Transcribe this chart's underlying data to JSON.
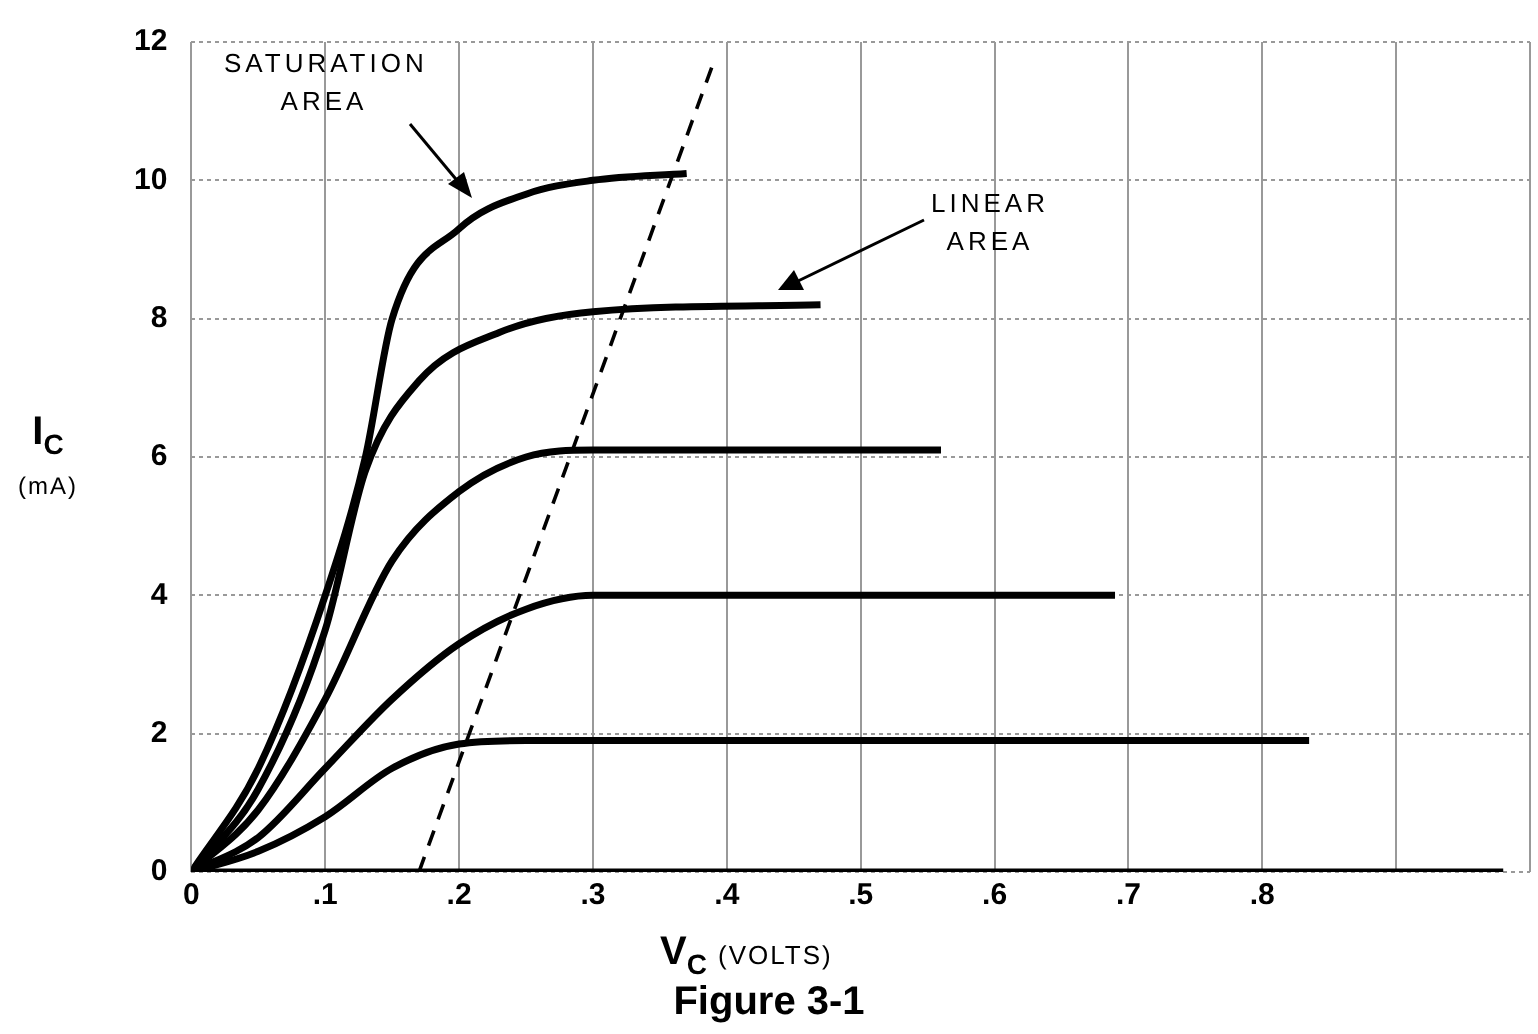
{
  "chart_data": {
    "type": "line",
    "xlabel": "V$_{C}$ (VOLTS)",
    "ylabel": "I$_{C}$ (mA)",
    "xlim": [
      0,
      1.0
    ],
    "ylim": [
      0,
      12
    ],
    "xticks": [
      0,
      {
        "value": 0.1,
        "label": ".1"
      },
      {
        "value": 0.2,
        "label": ".2"
      },
      {
        "value": 0.3,
        "label": ".3"
      },
      {
        "value": 0.4,
        "label": ".4"
      },
      {
        "value": 0.5,
        "label": ".5"
      },
      {
        "value": 0.6,
        "label": ".6"
      },
      {
        "value": 0.7,
        "label": ".7"
      },
      {
        "value": 0.8,
        "label": ".8"
      },
      {
        "value": 0.9,
        "label": null
      },
      {
        "value": 1.0,
        "label": null
      }
    ],
    "yticks": [
      0,
      2,
      4,
      6,
      8,
      10,
      12
    ],
    "grid": true,
    "legend": false,
    "marker": "none",
    "line_style": "solid",
    "series": [
      {
        "color": "#000000",
        "x": [
          0,
          0.05,
          0.1,
          0.13,
          0.15,
          0.2,
          0.25,
          0.3,
          0.37
        ],
        "values": [
          0,
          1.5,
          4.0,
          6.0,
          8.0,
          9.3,
          9.8,
          10.0,
          10.1
        ]
      },
      {
        "color": "#000000",
        "x": [
          0,
          0.05,
          0.1,
          0.13,
          0.17,
          0.23,
          0.3,
          0.47
        ],
        "values": [
          0,
          1.2,
          3.5,
          5.8,
          7.1,
          7.8,
          8.1,
          8.2
        ]
      },
      {
        "color": "#000000",
        "x": [
          0,
          0.05,
          0.1,
          0.15,
          0.2,
          0.25,
          0.3,
          0.56
        ],
        "values": [
          0,
          0.9,
          2.5,
          4.5,
          5.5,
          6.0,
          6.1,
          6.1
        ]
      },
      {
        "color": "#000000",
        "x": [
          0,
          0.05,
          0.1,
          0.15,
          0.2,
          0.25,
          0.3,
          0.69
        ],
        "values": [
          0,
          0.5,
          1.5,
          2.5,
          3.3,
          3.8,
          4.0,
          4.0
        ]
      },
      {
        "color": "#000000",
        "x": [
          0,
          0.05,
          0.1,
          0.15,
          0.2,
          0.25,
          0.835
        ],
        "values": [
          0,
          0.3,
          0.8,
          1.5,
          1.85,
          1.9,
          1.9
        ]
      },
      {
        "color": "#000000",
        "x": [
          0,
          0.98
        ],
        "values": [
          0,
          0
        ]
      },
      {
        "color": "#000000",
        "x": [
          0.17,
          0.39
        ],
        "values": [
          0,
          11.7
        ],
        "line_style": "dashed"
      }
    ],
    "annotations": [
      "SATURATION AREA",
      "LINEAR AREA",
      "Figure 3-1"
    ]
  }
}
